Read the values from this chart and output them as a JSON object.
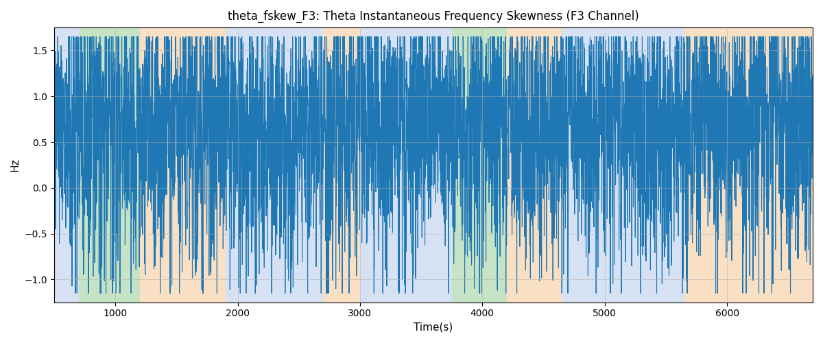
{
  "title": "theta_fskew_F3: Theta Instantaneous Frequency Skewness (F3 Channel)",
  "xlabel": "Time(s)",
  "ylabel": "Hz",
  "xlim": [
    500,
    6700
  ],
  "ylim": [
    -1.25,
    1.75
  ],
  "line_color": "#1f77b4",
  "line_width": 0.8,
  "grid_color": "#b0b0b0",
  "bands": [
    {
      "xmin": 500,
      "xmax": 700,
      "color": "#aec6e8",
      "alpha": 0.5
    },
    {
      "xmin": 700,
      "xmax": 1200,
      "color": "#90c98f",
      "alpha": 0.5
    },
    {
      "xmin": 1200,
      "xmax": 1900,
      "color": "#f5c18a",
      "alpha": 0.5
    },
    {
      "xmin": 1900,
      "xmax": 2700,
      "color": "#aec6e8",
      "alpha": 0.5
    },
    {
      "xmin": 2700,
      "xmax": 3000,
      "color": "#f5c18a",
      "alpha": 0.5
    },
    {
      "xmin": 3000,
      "xmax": 3650,
      "color": "#aec6e8",
      "alpha": 0.5
    },
    {
      "xmin": 3650,
      "xmax": 3750,
      "color": "#aec6e8",
      "alpha": 0.5
    },
    {
      "xmin": 3750,
      "xmax": 3800,
      "color": "#90c98f",
      "alpha": 0.5
    },
    {
      "xmin": 3800,
      "xmax": 4200,
      "color": "#90c98f",
      "alpha": 0.5
    },
    {
      "xmin": 4200,
      "xmax": 4650,
      "color": "#f5c18a",
      "alpha": 0.5
    },
    {
      "xmin": 4650,
      "xmax": 5050,
      "color": "#aec6e8",
      "alpha": 0.5
    },
    {
      "xmin": 5050,
      "xmax": 5650,
      "color": "#aec6e8",
      "alpha": 0.5
    },
    {
      "xmin": 5650,
      "xmax": 5800,
      "color": "#f5c18a",
      "alpha": 0.5
    },
    {
      "xmin": 5800,
      "xmax": 6700,
      "color": "#f5c18a",
      "alpha": 0.5
    }
  ],
  "seed": 42,
  "n_points": 6200,
  "t_start": 500,
  "t_end": 6700
}
